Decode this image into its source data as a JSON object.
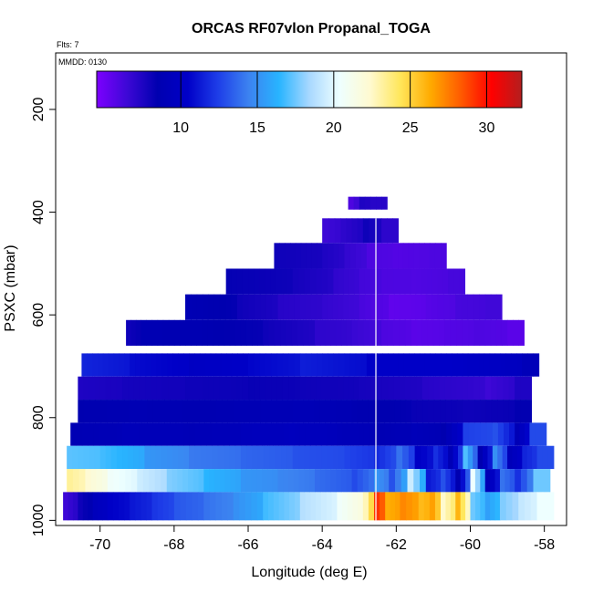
{
  "chart_data": {
    "type": "heatmap",
    "title": "ORCAS RF07vlon Propanal_TOGA",
    "flights_note": "Flts: 7",
    "date_note": "MMDD: 0130",
    "xlabel": "Longitude (deg E)",
    "ylabel": "PSXC (mbar)",
    "xlim": [
      -71.2,
      -57.4
    ],
    "ylim": [
      1010,
      90
    ],
    "x_ticks": [
      -70,
      -68,
      -66,
      -64,
      -62,
      -60,
      -58
    ],
    "x_tick_labels": [
      "-70",
      "-68",
      "-66",
      "-64",
      "-62",
      "-60",
      "-58"
    ],
    "y_ticks": [
      200,
      400,
      600,
      800,
      1000
    ],
    "y_tick_labels": [
      "200",
      "400",
      "600",
      "800",
      "1000"
    ],
    "colorbar": {
      "min": 4.5,
      "max": 32.3,
      "ticks": [
        10,
        15,
        20,
        25,
        30
      ],
      "tick_labels": [
        "10",
        "15",
        "20",
        "25",
        "30"
      ],
      "colors": [
        "#7d00ff",
        "#3d08d6",
        "#0000b0",
        "#0000c8",
        "#1e3ee8",
        "#3c82f0",
        "#28b4ff",
        "#a8d8ff",
        "#eeffff",
        "#fffad0",
        "#ffe65a",
        "#ffaa00",
        "#ff5a00",
        "#ff0000",
        "#b41e1e"
      ]
    },
    "vertical_line_lon": -62.55,
    "layers": [
      {
        "pmin": 370,
        "pmax": 395,
        "segments": [
          [
            -63.3,
            6.0
          ],
          [
            -63.0,
            7.5
          ],
          [
            -62.7,
            7.2
          ]
        ]
      },
      {
        "pmin": 412,
        "pmax": 460,
        "segments": [
          [
            -64.0,
            6.5
          ],
          [
            -63.5,
            7.0
          ],
          [
            -62.9,
            8.0
          ],
          [
            -62.4,
            7.0
          ]
        ]
      },
      {
        "pmin": 460,
        "pmax": 510,
        "segments": [
          [
            -65.3,
            8.0
          ],
          [
            -64.0,
            7.5
          ],
          [
            -63.4,
            6.8
          ],
          [
            -62.8,
            6.0
          ],
          [
            -62.1,
            5.8
          ],
          [
            -61.1,
            6.0
          ]
        ]
      },
      {
        "pmin": 510,
        "pmax": 560,
        "segments": [
          [
            -66.6,
            8.3
          ],
          [
            -64.8,
            7.8
          ],
          [
            -63.7,
            6.9
          ],
          [
            -63.0,
            6.3
          ],
          [
            -62.4,
            6.0
          ],
          [
            -61.6,
            5.9
          ],
          [
            -60.6,
            6.2
          ]
        ]
      },
      {
        "pmin": 560,
        "pmax": 610,
        "segments": [
          [
            -67.7,
            8.8
          ],
          [
            -66.3,
            8.0
          ],
          [
            -65.2,
            7.2
          ],
          [
            -64.0,
            6.8
          ],
          [
            -63.0,
            6.1
          ],
          [
            -62.2,
            5.4
          ],
          [
            -61.2,
            5.7
          ],
          [
            -60.4,
            6.2
          ],
          [
            -59.6,
            6.4
          ]
        ]
      },
      {
        "pmin": 610,
        "pmax": 660,
        "segments": [
          [
            -69.3,
            8.0
          ],
          [
            -68.9,
            8.7
          ],
          [
            -67.4,
            8.6
          ],
          [
            -65.6,
            8.0
          ],
          [
            -64.2,
            7.0
          ],
          [
            -63.2,
            6.6
          ],
          [
            -62.4,
            6.0
          ],
          [
            -61.6,
            5.6
          ],
          [
            -60.7,
            5.8
          ],
          [
            -59.9,
            6.0
          ],
          [
            -59.0,
            5.6
          ]
        ]
      },
      {
        "pmin": 675,
        "pmax": 720,
        "segments": [
          [
            -70.5,
            11.6
          ],
          [
            -69.2,
            10.8
          ],
          [
            -67.6,
            10.0
          ],
          [
            -66.0,
            10.6
          ],
          [
            -64.6,
            11.4
          ],
          [
            -62.8,
            10.4
          ],
          [
            -60.8,
            10.4
          ],
          [
            -58.6,
            9.2
          ]
        ]
      },
      {
        "pmin": 720,
        "pmax": 765,
        "segments": [
          [
            -70.6,
            7.5
          ],
          [
            -69.4,
            7.8
          ],
          [
            -67.7,
            8.0
          ],
          [
            -66.0,
            8.2
          ],
          [
            -64.6,
            8.0
          ],
          [
            -63.0,
            7.8
          ],
          [
            -61.3,
            7.2
          ],
          [
            -59.6,
            6.5
          ],
          [
            -58.8,
            7.5
          ]
        ]
      },
      {
        "pmin": 765,
        "pmax": 810,
        "segments": [
          [
            -70.6,
            8.5
          ],
          [
            -69.2,
            8.8
          ],
          [
            -67.8,
            8.6
          ],
          [
            -66.4,
            8.8
          ],
          [
            -64.8,
            9.0
          ],
          [
            -63.2,
            8.6
          ],
          [
            -61.6,
            8.2
          ],
          [
            -60.2,
            8.0
          ],
          [
            -58.8,
            8.4
          ]
        ]
      },
      {
        "pmin": 810,
        "pmax": 855,
        "segments": [
          [
            -70.8,
            8.8
          ],
          [
            -69.4,
            9.2
          ],
          [
            -67.6,
            9.0
          ],
          [
            -66.2,
            9.4
          ],
          [
            -64.9,
            9.6
          ],
          [
            -63.6,
            9.2
          ],
          [
            -62.6,
            8.8
          ],
          [
            -61.6,
            9.2
          ],
          [
            -60.8,
            8.5
          ],
          [
            -60.2,
            12.5
          ],
          [
            -59.4,
            13.0
          ],
          [
            -58.8,
            9.0
          ],
          [
            -58.4,
            12.8
          ]
        ]
      },
      {
        "pmin": 855,
        "pmax": 900,
        "segments": [
          [
            -70.9,
            17.2
          ],
          [
            -70.0,
            16.8
          ],
          [
            -68.8,
            15.2
          ],
          [
            -67.6,
            14.2
          ],
          [
            -66.2,
            13.6
          ],
          [
            -64.8,
            13.0
          ],
          [
            -63.4,
            12.6
          ],
          [
            -62.6,
            11.8
          ],
          [
            -62.0,
            14.0
          ],
          [
            -61.5,
            10.2
          ],
          [
            -61.0,
            12.0
          ],
          [
            -60.6,
            9.0
          ],
          [
            -60.2,
            17.0
          ],
          [
            -59.8,
            8.5
          ],
          [
            -59.4,
            15.0
          ],
          [
            -59.0,
            9.2
          ],
          [
            -58.6,
            11.6
          ],
          [
            -58.2,
            12.8
          ]
        ]
      },
      {
        "pmin": 900,
        "pmax": 945,
        "segments": [
          [
            -70.9,
            23.3
          ],
          [
            -70.4,
            22.2
          ],
          [
            -69.8,
            20.6
          ],
          [
            -69.0,
            19.4
          ],
          [
            -68.2,
            17.8
          ],
          [
            -67.2,
            16.4
          ],
          [
            -66.2,
            15.2
          ],
          [
            -65.2,
            14.6
          ],
          [
            -64.2,
            13.8
          ],
          [
            -63.2,
            12.8
          ],
          [
            -62.6,
            15.2
          ],
          [
            -62.2,
            13.0
          ],
          [
            -61.7,
            19.4
          ],
          [
            -61.2,
            11.2
          ],
          [
            -60.8,
            13.0
          ],
          [
            -60.4,
            8.5
          ],
          [
            -60.0,
            20.4
          ],
          [
            -59.6,
            9.0
          ],
          [
            -59.2,
            14.0
          ],
          [
            -58.8,
            12.0
          ],
          [
            -58.3,
            17.5
          ]
        ]
      },
      {
        "pmin": 945,
        "pmax": 1000,
        "segments": [
          [
            -71.0,
            6.5
          ],
          [
            -70.6,
            8.0
          ],
          [
            -70.2,
            9.5
          ],
          [
            -69.8,
            10.4
          ],
          [
            -69.2,
            11.2
          ],
          [
            -68.6,
            12.2
          ],
          [
            -68.0,
            13.2
          ],
          [
            -67.2,
            14.0
          ],
          [
            -66.4,
            15.0
          ],
          [
            -65.6,
            16.8
          ],
          [
            -64.6,
            18.8
          ],
          [
            -63.6,
            20.6
          ],
          [
            -62.9,
            22.8
          ],
          [
            -62.6,
            29.2
          ],
          [
            -62.3,
            26.2
          ],
          [
            -61.9,
            27.2
          ],
          [
            -61.4,
            25.8
          ],
          [
            -61.1,
            26.6
          ],
          [
            -60.8,
            22.4
          ],
          [
            -60.4,
            26.0
          ],
          [
            -60.0,
            17.5
          ],
          [
            -59.6,
            15.6
          ],
          [
            -59.2,
            17.8
          ],
          [
            -58.7,
            19.2
          ],
          [
            -58.2,
            20.4
          ]
        ]
      }
    ]
  }
}
